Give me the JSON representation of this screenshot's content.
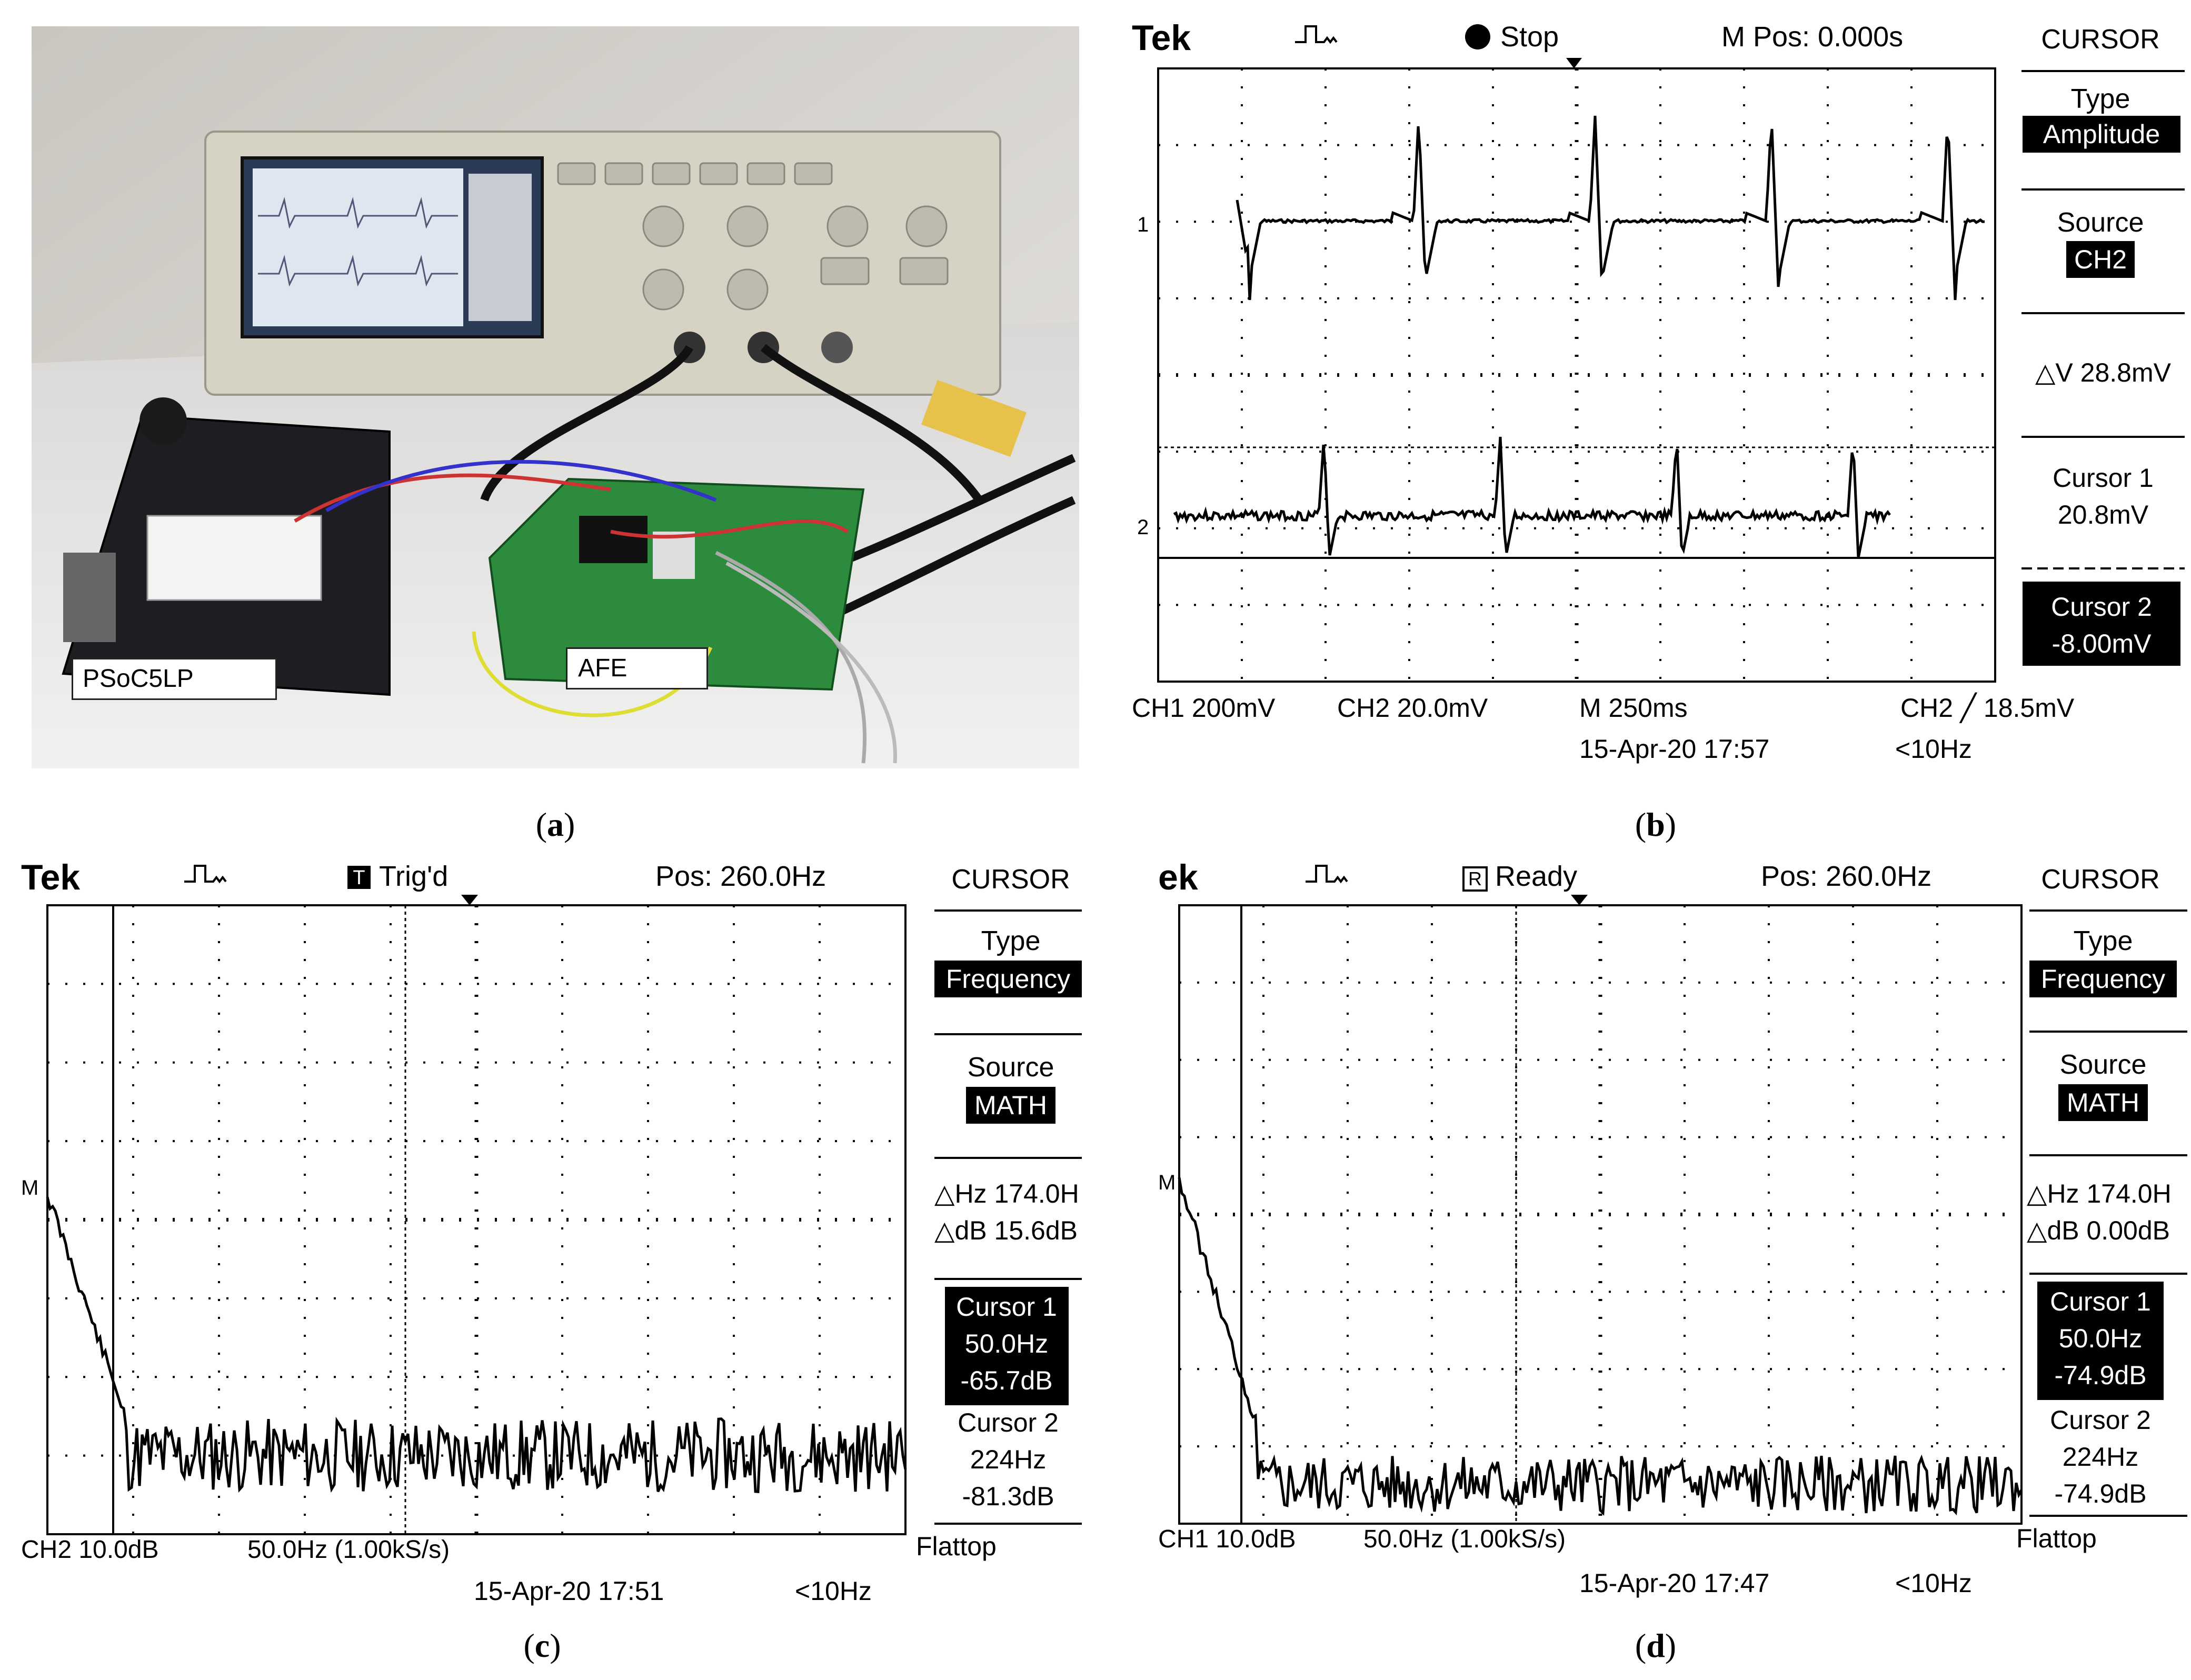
{
  "panel_a": {
    "caption": "a",
    "labels": {
      "psoc": "PSoC5LP",
      "afe": "AFE"
    }
  },
  "panel_b": {
    "caption": "b",
    "brand": "Tek",
    "status": "Stop",
    "position": "M Pos: 0.000s",
    "menu": {
      "title": "CURSOR",
      "type_label": "Type",
      "type_value": "Amplitude",
      "source_label": "Source",
      "source_value": "CH2",
      "delta": "△V 28.8mV",
      "cursor1_label": "Cursor 1",
      "cursor1_value": "20.8mV",
      "cursor2_label": "Cursor 2",
      "cursor2_value": "-8.00mV"
    },
    "bottom": {
      "ch1": "CH1  200mV",
      "ch2": "CH2  20.0mV",
      "timebase": "M 250ms",
      "trigger": "CH2 ╱ 18.5mV",
      "date": "15-Apr-20 17:57",
      "freq": "<10Hz"
    },
    "markers": {
      "ch1": "1",
      "ch2": "2"
    }
  },
  "panel_c": {
    "caption": "c",
    "brand": "Tek",
    "status": "Trig'd",
    "status_icon": "T",
    "position": "Pos: 260.0Hz",
    "menu": {
      "title": "CURSOR",
      "type_label": "Type",
      "type_value": "Frequency",
      "source_label": "Source",
      "source_value": "MATH",
      "delta_hz": "△Hz 174.0H",
      "delta_db": "△dB 15.6dB",
      "cursor1_label": "Cursor 1",
      "cursor1_hz": "50.0Hz",
      "cursor1_db": "-65.7dB",
      "cursor2_label": "Cursor 2",
      "cursor2_hz": "224Hz",
      "cursor2_db": "-81.3dB",
      "window": "Flattop"
    },
    "bottom": {
      "scale": "CH2 10.0dB",
      "span": "50.0Hz (1.00kS/s)",
      "date": "15-Apr-20 17:51",
      "freq": "<10Hz"
    },
    "marker": "M"
  },
  "panel_d": {
    "caption": "d",
    "brand": "ek",
    "status": "Ready",
    "status_icon": "R",
    "position": "Pos: 260.0Hz",
    "menu": {
      "title": "CURSOR",
      "type_label": "Type",
      "type_value": "Frequency",
      "source_label": "Source",
      "source_value": "MATH",
      "delta_hz": "△Hz 174.0H",
      "delta_db": "△dB 0.00dB",
      "cursor1_label": "Cursor 1",
      "cursor1_hz": "50.0Hz",
      "cursor1_db": "-74.9dB",
      "cursor2_label": "Cursor 2",
      "cursor2_hz": "224Hz",
      "cursor2_db": "-74.9dB",
      "window": "Flattop"
    },
    "bottom": {
      "scale": "CH1 10.0dB",
      "span": "50.0Hz (1.00kS/s)",
      "date": "15-Apr-20 17:47",
      "freq": "<10Hz"
    },
    "marker": "M"
  }
}
